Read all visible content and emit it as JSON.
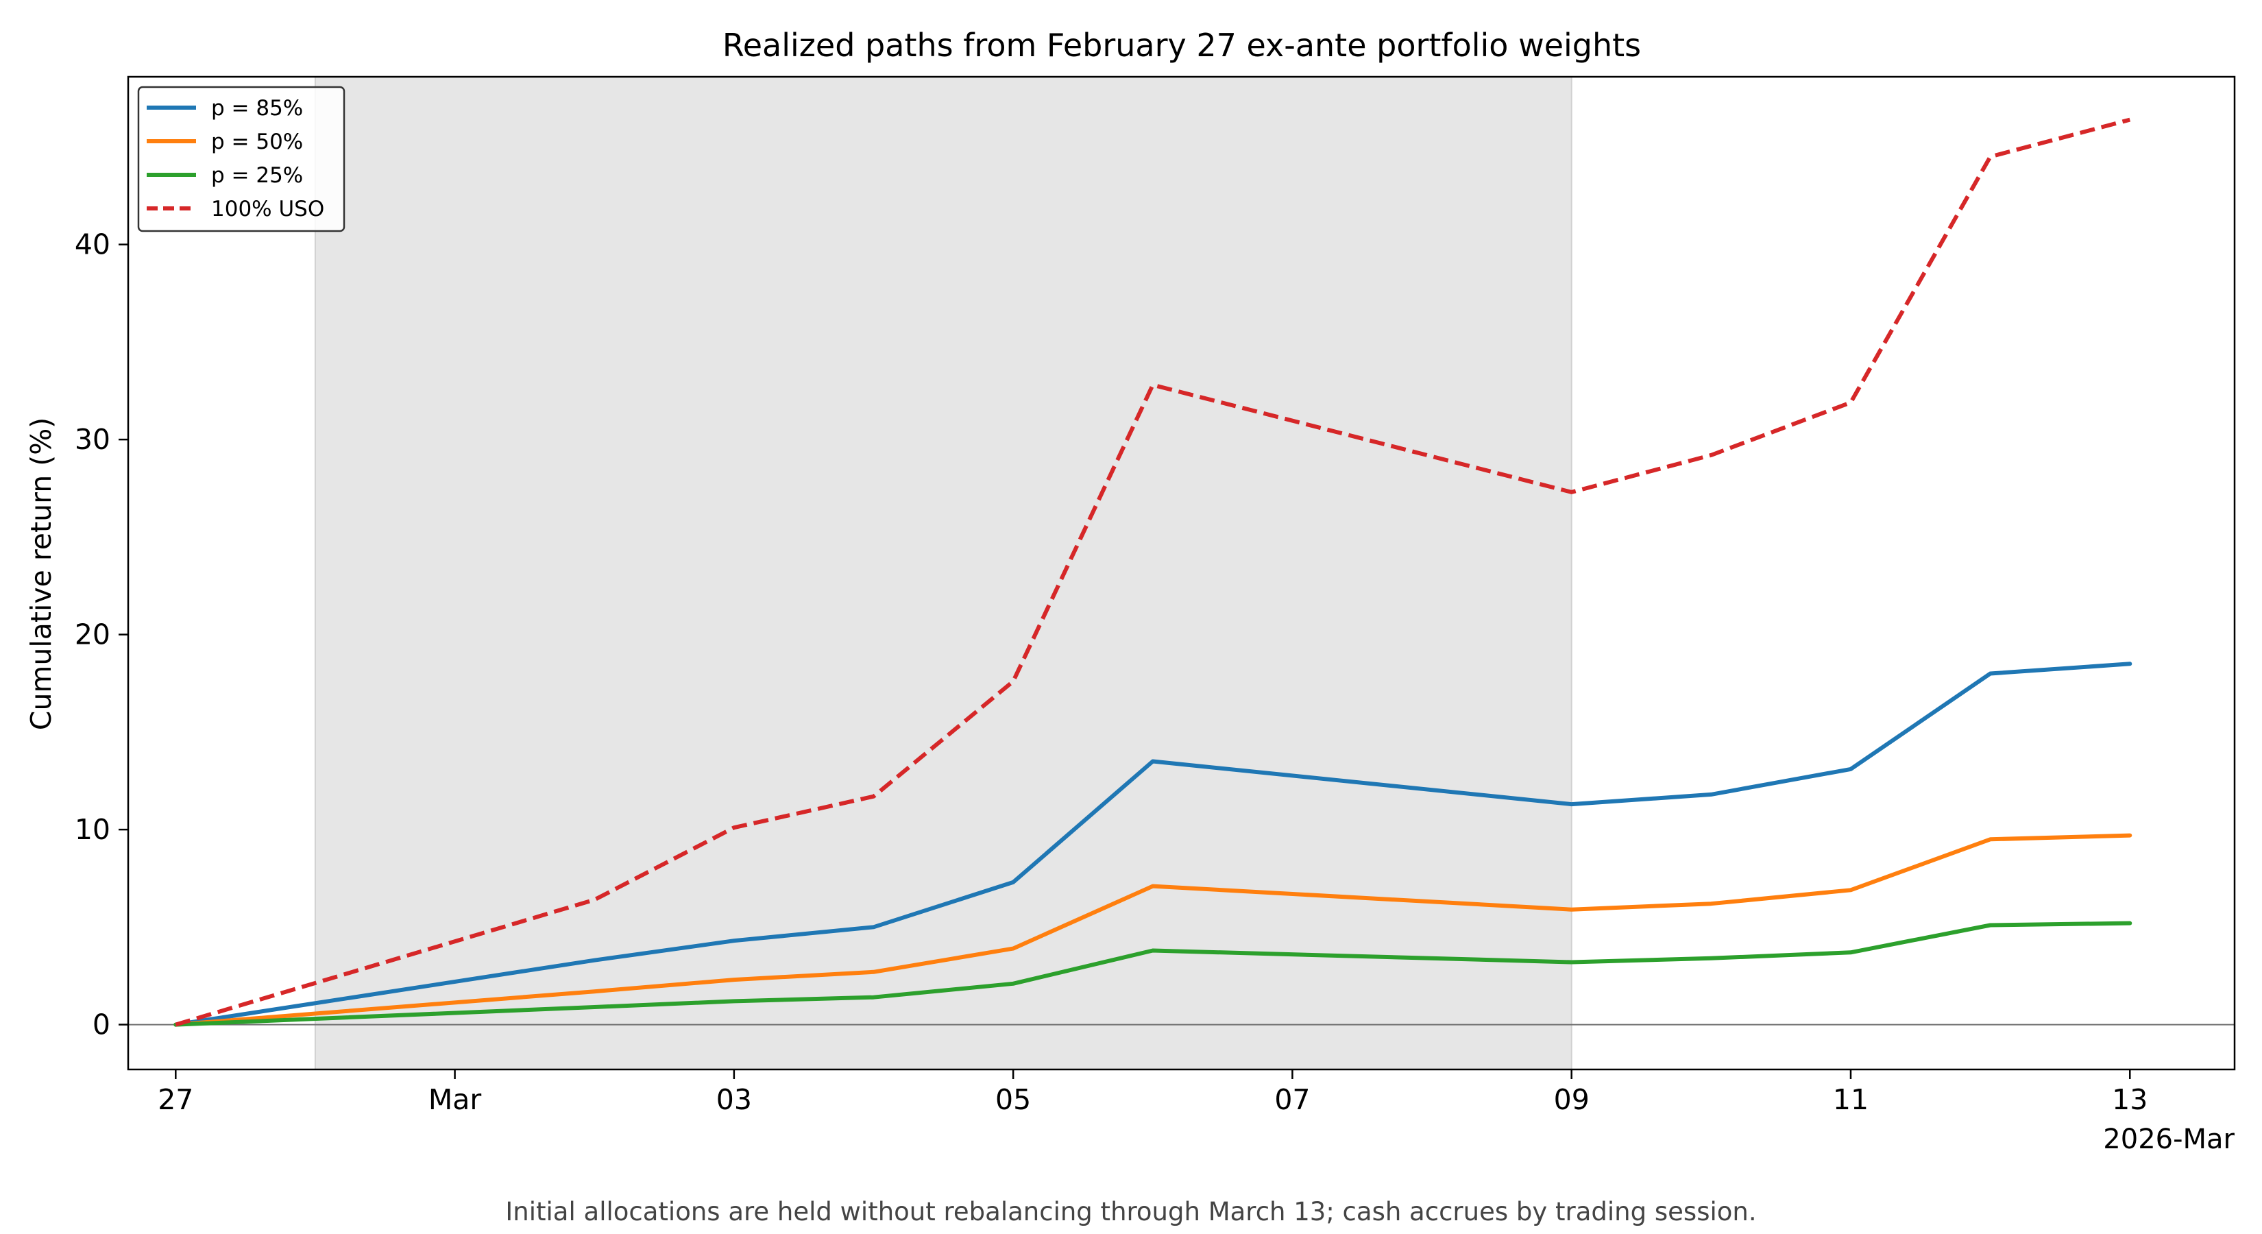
{
  "chart_data": {
    "type": "line",
    "title": "Realized paths from February 27 ex-ante portfolio weights",
    "ylabel": "Cumulative return (%)",
    "xlabel": "",
    "x_offset_label": "2026-Mar",
    "caption": "Initial allocations are held without rebalancing through March 13; cash accrues by trading session.",
    "x": [
      "2026-02-27",
      "2026-03-02",
      "2026-03-03",
      "2026-03-04",
      "2026-03-05",
      "2026-03-06",
      "2026-03-09",
      "2026-03-10",
      "2026-03-11",
      "2026-03-12",
      "2026-03-13"
    ],
    "x_range": [
      "2026-02-26 15:50",
      "2026-03-13 18:00"
    ],
    "x_ticks": [
      {
        "date": "2026-02-27",
        "label": "27"
      },
      {
        "date": "2026-03-01",
        "label": "Mar"
      },
      {
        "date": "2026-03-03",
        "label": "03"
      },
      {
        "date": "2026-03-05",
        "label": "05"
      },
      {
        "date": "2026-03-07",
        "label": "07"
      },
      {
        "date": "2026-03-09",
        "label": "09"
      },
      {
        "date": "2026-03-11",
        "label": "11"
      },
      {
        "date": "2026-03-13",
        "label": "13"
      }
    ],
    "ylim": [
      -2.3,
      48.6
    ],
    "y_ticks": [
      0,
      10,
      20,
      30,
      40
    ],
    "shaded_region": {
      "from": "2026-02-28",
      "to": "2026-03-09",
      "color": "#e6e6e6"
    },
    "zero_line": true,
    "grid": false,
    "legend_position": "top-left",
    "series": [
      {
        "name": "p = 85%",
        "color": "#1f77b4",
        "dash": false,
        "values": [
          0.0,
          3.3,
          4.3,
          5.0,
          7.3,
          13.5,
          11.3,
          11.8,
          13.1,
          18.0,
          18.5
        ]
      },
      {
        "name": "p = 50%",
        "color": "#ff7f0e",
        "dash": false,
        "values": [
          0.0,
          1.7,
          2.3,
          2.7,
          3.9,
          7.1,
          5.9,
          6.2,
          6.9,
          9.5,
          9.7
        ]
      },
      {
        "name": "p = 25%",
        "color": "#2ca02c",
        "dash": false,
        "values": [
          0.0,
          0.9,
          1.2,
          1.4,
          2.1,
          3.8,
          3.2,
          3.4,
          3.7,
          5.1,
          5.2
        ]
      },
      {
        "name": "100% USO",
        "color": "#d62728",
        "dash": true,
        "values": [
          0.0,
          6.4,
          10.1,
          11.7,
          17.6,
          32.8,
          27.3,
          29.2,
          31.9,
          44.5,
          46.4
        ]
      }
    ]
  }
}
